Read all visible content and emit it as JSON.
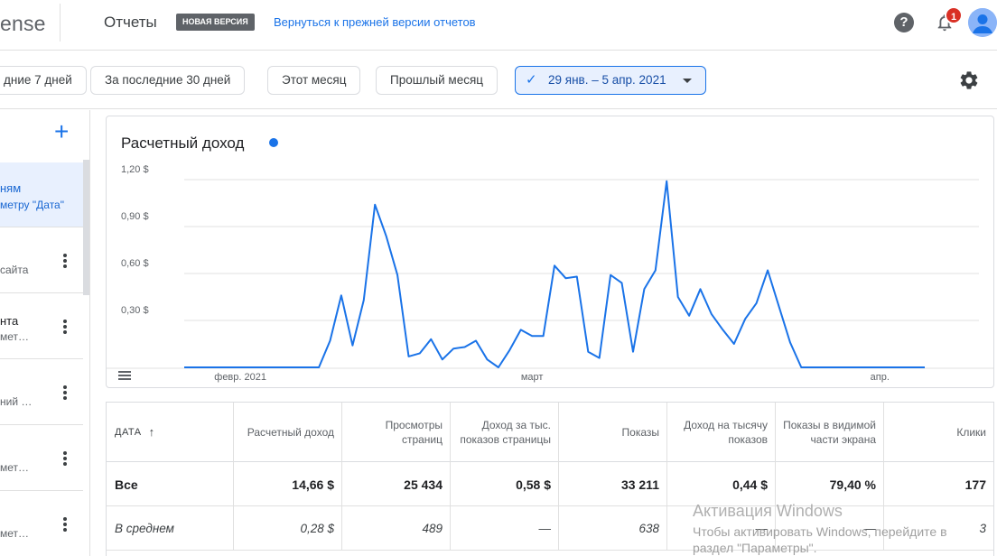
{
  "header": {
    "logo": "ense",
    "title": "Отчеты",
    "new_badge": "НОВАЯ ВЕРСИЯ",
    "back_link": "Вернуться к прежней версии отчетов",
    "help_glyph": "?",
    "notifications_count": "1",
    "accent": "#1a73e8"
  },
  "filters": {
    "chips": [
      "дние 7 дней",
      "За последние 30 дней",
      "Этот месяц",
      "Прошлый месяц"
    ],
    "active_range": "29 янв. – 5 апр. 2021",
    "check_glyph": "✓"
  },
  "sidebar": {
    "add_glyph": "+",
    "items": [
      {
        "l1": "ням",
        "l2": "метру \"Дата\""
      },
      {
        "l1": "",
        "l2": "сайта"
      },
      {
        "l1": "нта",
        "l2": "мет…"
      },
      {
        "l1": "",
        "l2": "ний …"
      },
      {
        "l1": "",
        "l2": "мет…"
      },
      {
        "l1": "",
        "l2": "мет…"
      }
    ]
  },
  "chart": {
    "title": "Расчетный доход",
    "series_color": "#1a73e8"
  },
  "chart_data": {
    "type": "line",
    "title": "Расчетный доход",
    "xlabel": "",
    "ylabel": "",
    "y_tick_labels": [
      "0,30 $",
      "0,60 $",
      "0,90 $",
      "1,20 $"
    ],
    "y_ticks": [
      0.3,
      0.6,
      0.9,
      1.2
    ],
    "ylim": [
      0,
      1.2
    ],
    "x_tick_labels": [
      "февр. 2021",
      "март",
      "апр."
    ],
    "x_tick_days": [
      3,
      31,
      62
    ],
    "x_start": "29 янв. 2021",
    "x_end": "5 апр. 2021",
    "grid": true,
    "series": [
      {
        "values": [
          0,
          0,
          0,
          0,
          0,
          0,
          0,
          0,
          0,
          0,
          0,
          0,
          0,
          0.17,
          0.46,
          0.14,
          0.43,
          1.04,
          0.84,
          0.59,
          0.07,
          0.09,
          0.18,
          0.05,
          0.12,
          0.13,
          0.17,
          0.05,
          0,
          0.11,
          0.24,
          0.2,
          0.2,
          0.65,
          0.57,
          0.58,
          0.1,
          0.06,
          0.59,
          0.54,
          0.1,
          0.5,
          0.62,
          1.19,
          0.45,
          0.33,
          0.5,
          0.34,
          0.24,
          0.15,
          0.31,
          0.41,
          0.62,
          0.39,
          0.16,
          0,
          0,
          0,
          0,
          0,
          0,
          0,
          0,
          0,
          0,
          0,
          0
        ]
      }
    ]
  },
  "table": {
    "sort_glyph": "↑",
    "headers": [
      "ДАТА",
      "Расчетный доход",
      "Просмотры страниц",
      "Доход за тыс. показов страницы",
      "Показы",
      "Доход на тысячу показов",
      "Показы в видимой части экрана",
      "Клики"
    ],
    "rows": [
      {
        "type": "total",
        "cells": [
          "Все",
          "14,66 $",
          "25 434",
          "0,58 $",
          "33 211",
          "0,44 $",
          "79,40 %",
          "177"
        ]
      },
      {
        "type": "avg",
        "cells": [
          "В среднем",
          "0,28 $",
          "489",
          "—",
          "638",
          "—",
          "—",
          "3"
        ]
      }
    ]
  },
  "watermark": {
    "line1": "Активация Windows",
    "line2": "Чтобы активировать Windows, перейдите в",
    "line3": "раздел \"Параметры\"."
  }
}
